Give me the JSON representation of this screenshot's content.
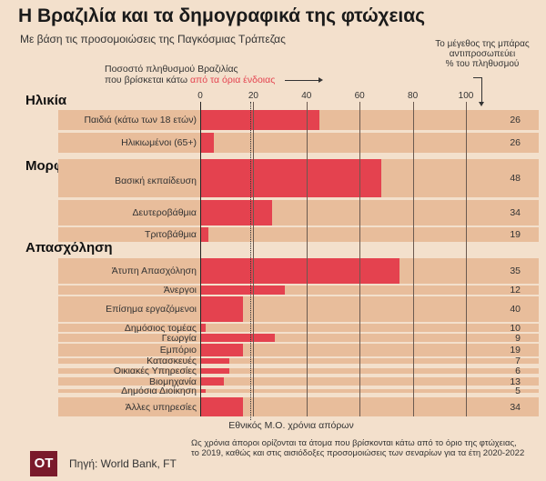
{
  "header": {
    "title": "Η Βραζιλία και τα δημογραφικά της φτώχειας",
    "subtitle": "Με βάση τις προσομοιώσεις της Παγκόσμιας Τράπεζας"
  },
  "annotations": {
    "left_line1": "Ποσοστό πληθυσμού Βραζιλίας",
    "left_line2_a": "που βρίσκεται κάτω ",
    "left_line2_b": "από τα όρια ένδοιας",
    "right_line1": "Το μέγεθος της μπάρας",
    "right_line2": "αντιπροσωπεύει",
    "right_line3": "% του πληθυσμού",
    "avg_label": "Εθνικός Μ.Ο. χρόνια απόρων"
  },
  "footer": {
    "logo": "ΟΤ",
    "source": "Πηγή: World Bank, FT",
    "note1": "Ως χρόνια άποροι ορίζονται τα άτομα που βρίσκονται κάτω από το όριο της φτώχειας,",
    "note2": "το 2019, καθώς και στις αισιόδοξες προσομοιώσεις των σεναρίων για τα έτη 2020-2022"
  },
  "colors": {
    "bar": "#e4424f",
    "band": "#e8bd9b",
    "background": "#f3e0cc",
    "logo": "#7a1a2b",
    "highlight": "#e4424f"
  },
  "chart_data": {
    "type": "bar",
    "orientation": "horizontal",
    "xlim": [
      0,
      100
    ],
    "xticks": [
      "0",
      "20",
      "40",
      "60",
      "80",
      "100"
    ],
    "national_average": 19,
    "sections": [
      {
        "name": "Ηλικία",
        "start": 0
      },
      {
        "name": "Μορφωτικό επίπεδο",
        "start": 2
      },
      {
        "name": "Απασχόληση",
        "start": 5
      }
    ],
    "categories": [
      "Παιδιά (κάτω των 18 ετών)",
      "Ηλικιωμένοι (65+)",
      "Βασική εκπαίδευση",
      "Δευτεροβάθμια",
      "Τριτοβάθμια",
      "Άτυπη Απασχόληση",
      "Άνεργοι",
      "Επίσημα εργαζόμενοι",
      "Δημόσιος τομέας",
      "Γεωργία",
      "Εμπόριο",
      "Κατασκευές",
      "Οικιακές Υπηρεσίες",
      "Βιομηχανία",
      "Δημόσια Διοίκηση",
      "Άλλες υπηρεσίες"
    ],
    "values": [
      45,
      5,
      68,
      27,
      3,
      75,
      32,
      16,
      2,
      28,
      16,
      11,
      11,
      9,
      2,
      16
    ],
    "population_share": [
      "26",
      "26",
      "48",
      "34",
      "19",
      "35",
      "12",
      "40",
      "10",
      "9",
      "19",
      "7",
      "6",
      "13",
      "5",
      "34"
    ]
  }
}
